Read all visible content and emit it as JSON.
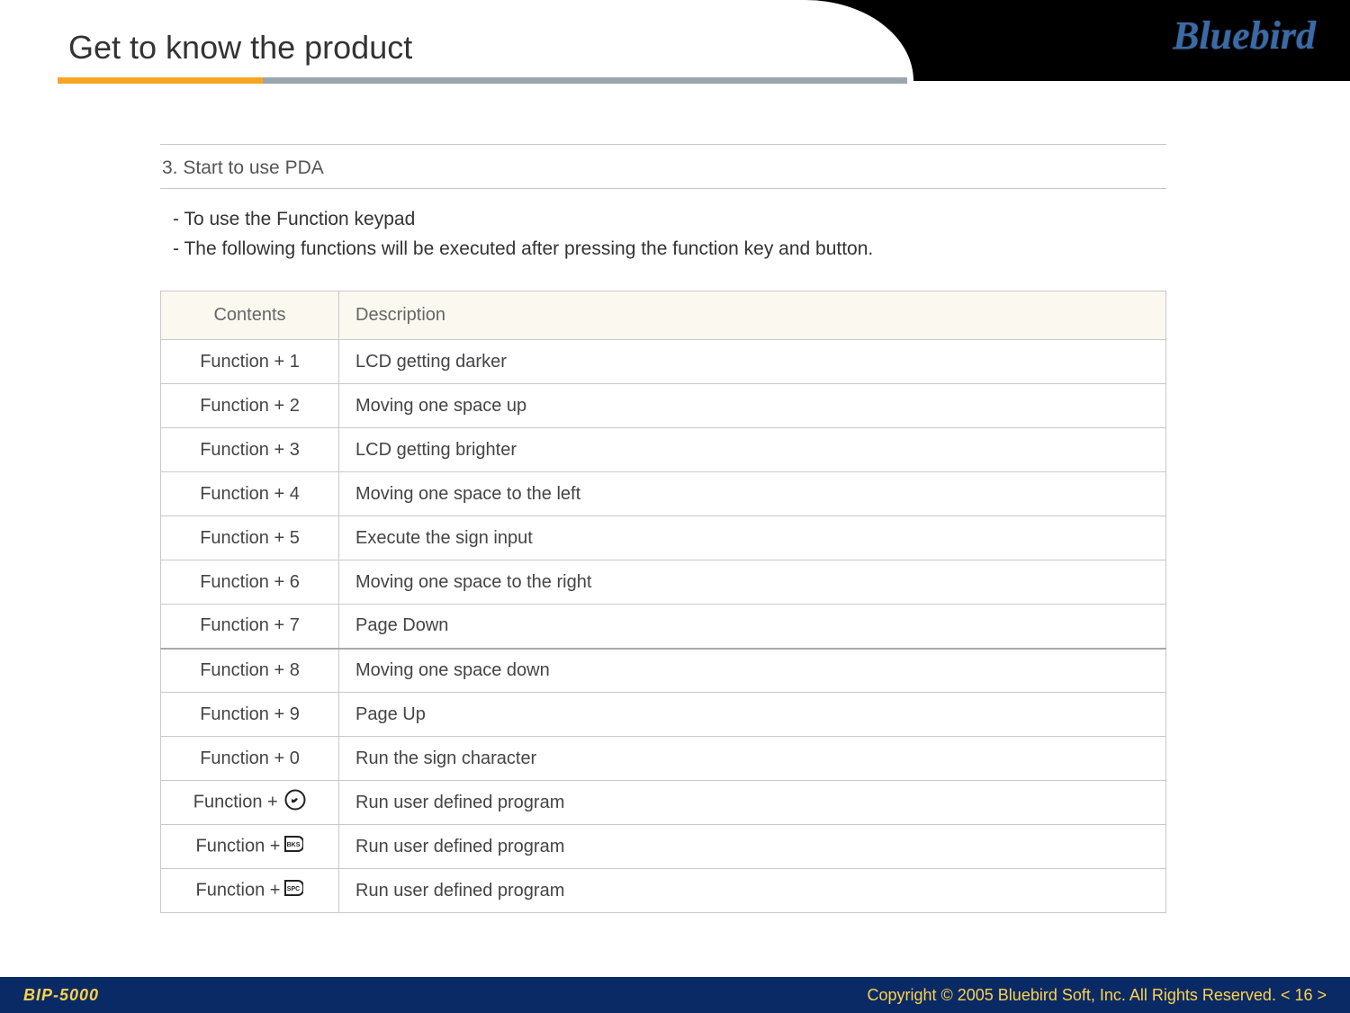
{
  "header": {
    "brand": "Bluebird",
    "page_title": "Get to know the product",
    "title_bar": {
      "orange_color": "#f6a623",
      "gray_color": "#9aa6ae"
    }
  },
  "section": {
    "heading": "3. Start to use PDA",
    "bullets": [
      "- To use the Function keypad",
      "- The following functions will be executed after pressing the function key and button."
    ]
  },
  "table": {
    "header_bg": "#fbf8f0",
    "border_color": "#c9c9c9",
    "columns": {
      "contents": "Contents",
      "description": "Description"
    },
    "rows": [
      {
        "label_text": "Function + 1",
        "icon": null,
        "desc": "LCD getting darker",
        "strong_sep": false
      },
      {
        "label_text": "Function + 2",
        "icon": null,
        "desc": "Moving one space up",
        "strong_sep": false
      },
      {
        "label_text": "Function + 3",
        "icon": null,
        "desc": "LCD getting brighter",
        "strong_sep": false
      },
      {
        "label_text": "Function + 4",
        "icon": null,
        "desc": "Moving one space to the left",
        "strong_sep": false
      },
      {
        "label_text": "Function + 5",
        "icon": null,
        "desc": "Execute the sign input",
        "strong_sep": false
      },
      {
        "label_text": "Function + 6",
        "icon": null,
        "desc": "Moving one space to the right",
        "strong_sep": false
      },
      {
        "label_text": "Function + 7",
        "icon": null,
        "desc": "Page Down",
        "strong_sep": false
      },
      {
        "label_text": "Function + 8",
        "icon": null,
        "desc": "Moving one space down",
        "strong_sep": true
      },
      {
        "label_text": "Function + 9",
        "icon": null,
        "desc": "Page Up",
        "strong_sep": false
      },
      {
        "label_text": "Function + 0",
        "icon": null,
        "desc": "Run the sign character",
        "strong_sep": false
      },
      {
        "label_text": "Function + ",
        "icon": "phone-key-icon",
        "desc": "Run user defined program",
        "strong_sep": false
      },
      {
        "label_text": "Function +",
        "icon": "bks-key-icon",
        "desc": "Run user defined program",
        "strong_sep": false
      },
      {
        "label_text": "Function +",
        "icon": "spc-key-icon",
        "desc": "Run user defined program",
        "strong_sep": false
      }
    ]
  },
  "footer": {
    "product": "BIP-5000",
    "copyright": "Copyright © 2005 Bluebird Soft, Inc. All Rights Reserved.   < 16 >",
    "bg_color": "#0a2a66",
    "text_color": "#ffd24a"
  }
}
